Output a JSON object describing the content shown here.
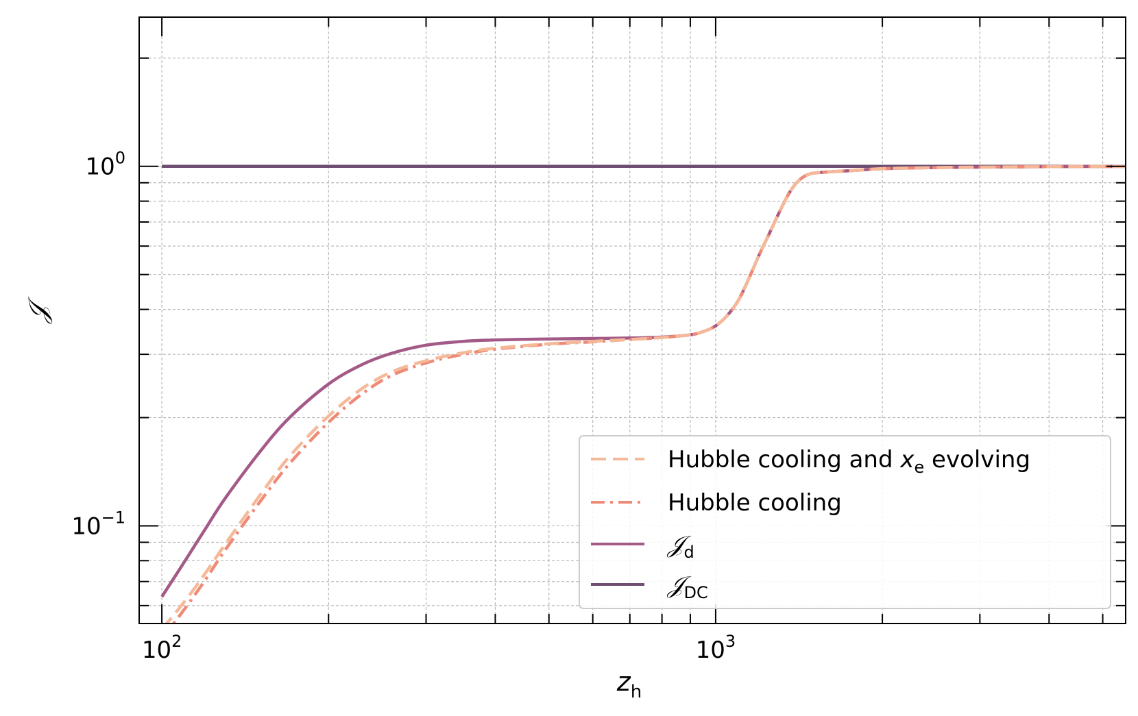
{
  "chart_data": {
    "type": "line",
    "xscale": "log",
    "yscale": "log",
    "xlim": [
      91,
      5500
    ],
    "ylim": [
      0.0535,
      2.6
    ],
    "grid": true,
    "legend_position": "lower-right",
    "xlabel": {
      "main": "z",
      "sub": "h"
    },
    "ylabel": "𝒥",
    "x_ticks": [
      {
        "value": 100,
        "base": "10",
        "exp": "2"
      },
      {
        "value": 1000,
        "base": "10",
        "exp": "3"
      }
    ],
    "y_ticks": [
      {
        "value": 1,
        "base": "10",
        "exp": "0"
      },
      {
        "value": 0.1,
        "base": "10",
        "exp": "−1"
      }
    ],
    "x_minor_ticks": [
      200,
      300,
      400,
      500,
      600,
      700,
      800,
      900,
      2000,
      3000,
      4000,
      5000
    ],
    "y_minor_ticks": [
      0.06,
      0.07,
      0.08,
      0.09,
      0.2,
      0.3,
      0.4,
      0.5,
      0.6,
      0.7,
      0.8,
      0.9,
      2
    ],
    "series": [
      {
        "name": {
          "main": "Hubble cooling and ",
          "italic": "x",
          "sub": "e",
          "tail": " evolving"
        },
        "color": "#f5b999",
        "dash": "dashed",
        "x": [
          100,
          110,
          120,
          130,
          150,
          170,
          200,
          230,
          260,
          300,
          350,
          400,
          500,
          600,
          700,
          800,
          900,
          950,
          1000,
          1050,
          1100,
          1150,
          1200,
          1250,
          1300,
          1350,
          1400,
          1450,
          1500,
          1600,
          1800,
          2000,
          2500,
          3000,
          4000,
          5500
        ],
        "y": [
          0.0515,
          0.0617,
          0.0741,
          0.0887,
          0.121,
          0.156,
          0.202,
          0.241,
          0.268,
          0.288,
          0.303,
          0.312,
          0.321,
          0.326,
          0.33,
          0.334,
          0.34,
          0.347,
          0.36,
          0.385,
          0.425,
          0.49,
          0.57,
          0.65,
          0.74,
          0.83,
          0.9,
          0.94,
          0.957,
          0.965,
          0.975,
          0.985,
          0.992,
          0.995,
          0.998,
          0.999
        ]
      },
      {
        "name": {
          "main": "Hubble cooling"
        },
        "color": "#ee8a76",
        "dash": "dashdot",
        "x": [
          100,
          110,
          120,
          130,
          150,
          170,
          200,
          230,
          260,
          300,
          350,
          400,
          500,
          600,
          700,
          800,
          900,
          950,
          1000,
          1050,
          1100,
          1150,
          1200,
          1250,
          1300,
          1350,
          1400,
          1450,
          1500,
          1600,
          1800,
          2000,
          2500,
          3000,
          4000,
          5500
        ],
        "y": [
          0.0485,
          0.0588,
          0.071,
          0.0855,
          0.116,
          0.149,
          0.194,
          0.233,
          0.262,
          0.284,
          0.3,
          0.31,
          0.32,
          0.325,
          0.33,
          0.334,
          0.34,
          0.347,
          0.36,
          0.385,
          0.425,
          0.49,
          0.57,
          0.65,
          0.74,
          0.83,
          0.9,
          0.94,
          0.957,
          0.965,
          0.975,
          0.985,
          0.992,
          0.995,
          0.998,
          0.999
        ]
      },
      {
        "name": {
          "main": "𝒥",
          "sub": "d"
        },
        "color": "#a35a87",
        "dash": "solid",
        "x": [
          100,
          110,
          120,
          130,
          150,
          170,
          200,
          230,
          260,
          300,
          350,
          400,
          500,
          600,
          700,
          800,
          900,
          950,
          1000,
          1050,
          1100,
          1150,
          1200,
          1250,
          1300,
          1350,
          1400,
          1450,
          1500,
          1600,
          1800,
          2000,
          2500,
          3000,
          4000,
          5500
        ],
        "y": [
          0.0635,
          0.0797,
          0.0984,
          0.119,
          0.16,
          0.2,
          0.248,
          0.281,
          0.302,
          0.318,
          0.326,
          0.329,
          0.331,
          0.332,
          0.333,
          0.335,
          0.34,
          0.347,
          0.36,
          0.385,
          0.425,
          0.49,
          0.57,
          0.65,
          0.74,
          0.83,
          0.9,
          0.94,
          0.957,
          0.965,
          0.975,
          0.985,
          0.992,
          0.995,
          0.998,
          0.999
        ]
      },
      {
        "name": {
          "main": "𝒥",
          "sub": "DC"
        },
        "color": "#6e4f72",
        "dash": "solid",
        "x": [
          100,
          5500
        ],
        "y": [
          1,
          1
        ]
      }
    ]
  }
}
